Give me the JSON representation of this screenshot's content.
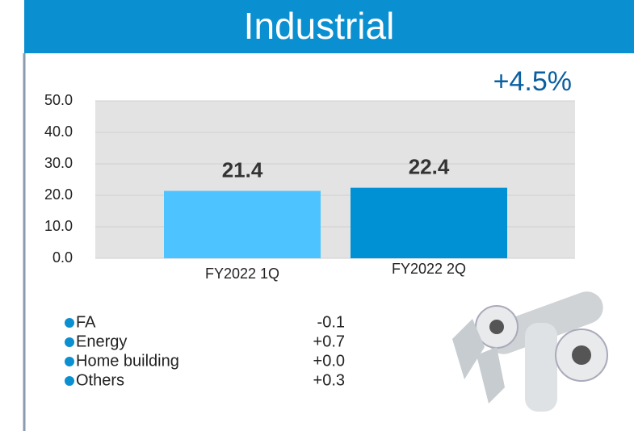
{
  "chart_data": {
    "type": "bar",
    "title": "Industrial",
    "annotation": "+4.5%",
    "categories": [
      "FY2022 1Q",
      "FY2022 2Q"
    ],
    "values": [
      21.4,
      22.4
    ],
    "colors": [
      "#4dc3ff",
      "#0091d5"
    ],
    "ylim": [
      0,
      50
    ],
    "yticks": [
      {
        "value": 0,
        "label": "0.0"
      },
      {
        "value": 10,
        "label": "10.0"
      },
      {
        "value": 20,
        "label": "20.0"
      },
      {
        "value": 30,
        "label": "30.0"
      },
      {
        "value": 40,
        "label": "40.0"
      },
      {
        "value": 50,
        "label": "50.0"
      }
    ],
    "grid": true,
    "breakdown": [
      {
        "name": "FA",
        "change": "-0.1"
      },
      {
        "name": "Energy",
        "change": "+0.7"
      },
      {
        "name": "Home building",
        "change": "+0.0"
      },
      {
        "name": "Others",
        "change": "+0.3"
      }
    ]
  }
}
